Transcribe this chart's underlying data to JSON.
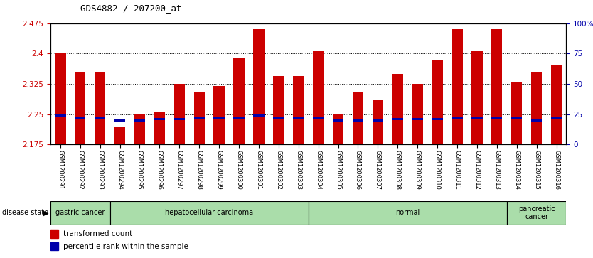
{
  "title": "GDS4882 / 207200_at",
  "samples": [
    "GSM1200291",
    "GSM1200292",
    "GSM1200293",
    "GSM1200294",
    "GSM1200295",
    "GSM1200296",
    "GSM1200297",
    "GSM1200298",
    "GSM1200299",
    "GSM1200300",
    "GSM1200301",
    "GSM1200302",
    "GSM1200303",
    "GSM1200304",
    "GSM1200305",
    "GSM1200306",
    "GSM1200307",
    "GSM1200308",
    "GSM1200309",
    "GSM1200310",
    "GSM1200311",
    "GSM1200312",
    "GSM1200313",
    "GSM1200314",
    "GSM1200315",
    "GSM1200316"
  ],
  "transformed_count": [
    2.4,
    2.355,
    2.355,
    2.22,
    2.25,
    2.255,
    2.325,
    2.305,
    2.32,
    2.39,
    2.46,
    2.345,
    2.345,
    2.405,
    2.25,
    2.305,
    2.285,
    2.35,
    2.325,
    2.385,
    2.46,
    2.405,
    2.46,
    2.33,
    2.355,
    2.37
  ],
  "percentile_rank_pct": [
    24,
    22,
    22,
    20,
    20,
    21,
    21,
    22,
    22,
    22,
    24,
    22,
    22,
    22,
    20,
    20,
    20,
    21,
    21,
    21,
    22,
    22,
    22,
    22,
    20,
    22
  ],
  "ymin": 2.175,
  "ymax": 2.475,
  "yticks": [
    2.175,
    2.25,
    2.325,
    2.4,
    2.475
  ],
  "ytick_labels": [
    "2.175",
    "2.25",
    "2.325",
    "2.4",
    "2.475"
  ],
  "right_ytick_pct": [
    0,
    25,
    50,
    75,
    100
  ],
  "right_ytick_labels": [
    "0",
    "25",
    "50",
    "75",
    "100%"
  ],
  "bar_color": "#cc0000",
  "percentile_color": "#0000aa",
  "bg_color": "#ffffff",
  "plot_bg": "#ffffff",
  "groups": [
    {
      "label": "gastric cancer",
      "start": 0,
      "end": 3,
      "color": "#aaddaa"
    },
    {
      "label": "hepatocellular carcinoma",
      "start": 3,
      "end": 13,
      "color": "#aaddaa"
    },
    {
      "label": "normal",
      "start": 13,
      "end": 23,
      "color": "#aaddaa"
    },
    {
      "label": "pancreatic\ncancer",
      "start": 23,
      "end": 26,
      "color": "#aaddaa"
    }
  ],
  "group_separators": [
    3,
    13,
    23
  ],
  "tick_color_left": "#cc0000",
  "tick_color_right": "#0000aa",
  "title_fontsize": 9,
  "bar_width": 0.55
}
